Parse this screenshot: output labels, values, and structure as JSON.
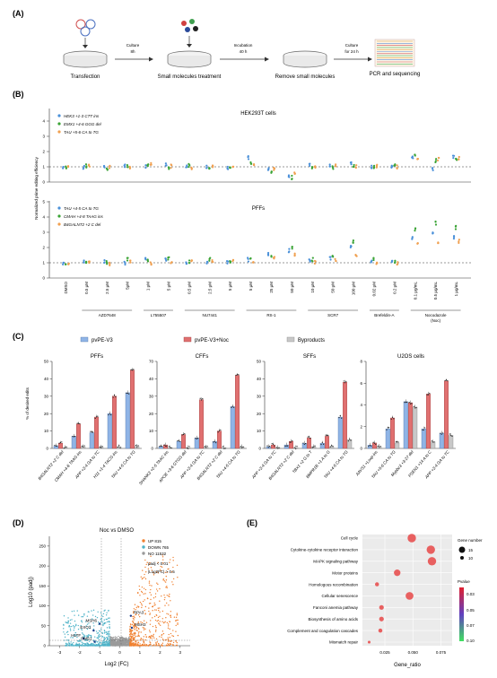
{
  "panels": {
    "A": {
      "label": "(A)",
      "steps": [
        {
          "name": "Transfection",
          "arrow_above": "Culture",
          "arrow_below": "8h"
        },
        {
          "name": "Small molecules treatment",
          "arrow_above": "Incubation",
          "arrow_below": "40 h"
        },
        {
          "name": "Remove small molecules",
          "arrow_above": "Culture",
          "arrow_below": "for 24 h"
        },
        {
          "name": "PCR and sequencing"
        }
      ]
    },
    "B": {
      "label": "(B)",
      "ylabel": "Normalized prime editing efficiency",
      "top": {
        "title": "HEK293T cells",
        "legend": [
          {
            "label": "HEK3 +1-3 CTT ins",
            "color": "#4a90d9"
          },
          {
            "label": "EMX1 +4-6 GGG del",
            "color": "#3aa335"
          },
          {
            "label": "TAU +5-6 CA to TG",
            "color": "#f0a050"
          }
        ],
        "yticks": [
          "0",
          "1",
          "2",
          "3",
          "4"
        ]
      },
      "bottom": {
        "title": "PFFs",
        "legend": [
          {
            "label": "TAU +4-5 CA to TG",
            "color": "#4a90d9"
          },
          {
            "label": "CMAH +4-8 TAAG ins",
            "color": "#3aa335"
          },
          {
            "label": "B4GALNT2 +2 C del",
            "color": "#f0a050"
          }
        ],
        "yticks": [
          "0",
          "1",
          "2",
          "3",
          "4",
          "5"
        ]
      },
      "conc_labels": [
        "DMSO",
        "0.5 μM",
        "2.5 μM",
        "5μM",
        "1 μM",
        "5 μM",
        "0.5 μM",
        "2.5 μM",
        "5 μM",
        "5 μM",
        "25 μM",
        "50 μM",
        "10 μM",
        "50 μM",
        "100 μM",
        "0.02 μM",
        "0.2 μM",
        "0.1 μg/mL",
        "0.5 μg/mL",
        "1 μg/mL"
      ],
      "groups": [
        "AZD7648",
        "L755507",
        "NU7441",
        "RS-1",
        "SCR7",
        "Brefeldin-A",
        "Nocodazole (Noc)"
      ]
    },
    "C": {
      "label": "(C)",
      "legend": [
        {
          "label": "pvPE-V3",
          "color": "#8fb4e6"
        },
        {
          "label": "pvPE-V3+Noc",
          "color": "#e07070"
        },
        {
          "label": "Byproducts",
          "color": "#c8c8c8"
        }
      ],
      "ylabel": "% of desired edits",
      "subpanels": [
        {
          "title": "PFFs",
          "yticks": [
            "0",
            "10",
            "20",
            "30",
            "40",
            "50"
          ],
          "sites": [
            "B4GALNT2 +2 C del",
            "CMAH +4-8 TAAG ins",
            "APP +3-4 GA to TC",
            "H11 +1-4 TACG ins",
            "TAU +4-5 CA to TG"
          ]
        },
        {
          "title": "CFFs",
          "yticks": [
            "0",
            "10",
            "20",
            "30",
            "40",
            "70"
          ],
          "sites": [
            "SHANK3 +2-5 TAAC ins",
            "APOE +3-6 GTGG del",
            "APP +3-4 GA to TC",
            "B4GALNT2 +2 C del",
            "TAU +4-5 CA to TG"
          ]
        },
        {
          "title": "SFFs",
          "yticks": [
            "0",
            "10",
            "20",
            "30",
            "40",
            "50"
          ],
          "sites": [
            "APP +3-4 GA to TC",
            "B4GALNT2 +2 C del",
            "TBX1 +2 G to T",
            "BMPR1B +1 A to G",
            "TAU +4-5 CA to TG"
          ]
        },
        {
          "title": "U2OS cells",
          "yticks": [
            "0",
            "2",
            "4",
            "6",
            "8"
          ],
          "sites": [
            "AAVS1 +Loxp ins",
            "TAU +5-6 CA to TG",
            "Mypbc3 +3-27 del",
            "PSEN1 +14 A to C",
            "APP +3-4 GA to TC"
          ]
        }
      ]
    },
    "D": {
      "label": "(D)",
      "title": "Noc vs DMSO",
      "xlabel": "Log2 (FC)",
      "ylabel": "Log10 (padj)",
      "stats": [
        {
          "text": "UP 815",
          "color": "#f08030"
        },
        {
          "text": "DOWN 765",
          "color": "#4fb3c8"
        },
        {
          "text": "NO 11532",
          "color": "#9a9a9a"
        }
      ],
      "criteria": [
        "padj < 0.01",
        "|Log2FC| > 0.5"
      ],
      "genes": [
        "MSH6",
        "RPA3",
        "MSH3",
        "EXO1",
        "HLTF",
        "PMS1"
      ],
      "xticks": [
        "-3",
        "-2",
        "-1",
        "0",
        "1",
        "2",
        "3"
      ],
      "yticks": [
        "0",
        "50",
        "100",
        "150",
        "200",
        "250"
      ]
    },
    "E": {
      "label": "(E)",
      "xlabel": "Gene_ratio",
      "xticks": [
        "0.025",
        "0.050",
        "0.075"
      ],
      "size_legend_title": "Gene number",
      "size_legend": [
        "15",
        "10"
      ],
      "color_legend_title": "Pvalue",
      "color_legend_ticks": [
        "0.03",
        "0.05",
        "0.07",
        "0.10"
      ]
    }
  },
  "chart_data": [
    {
      "type": "scatter",
      "title": "Noc vs DMSO",
      "xlabel": "Log2 (FC)",
      "ylabel": "Log10 (padj)",
      "xlim": [
        -3.5,
        3.5
      ],
      "ylim": [
        0,
        270
      ],
      "series": [
        {
          "name": "UP 815",
          "count": 815
        },
        {
          "name": "DOWN 765",
          "count": 765
        },
        {
          "name": "NO 11532",
          "count": 11532
        }
      ],
      "annotations": [
        {
          "label": "MSH6",
          "x": -1.0,
          "y": 55
        },
        {
          "label": "RPA3",
          "x": 0.55,
          "y": 75
        },
        {
          "label": "MSH3",
          "x": 0.6,
          "y": 45
        },
        {
          "label": "EXO1",
          "x": -1.3,
          "y": 38
        },
        {
          "label": "HLTF",
          "x": -1.8,
          "y": 18
        },
        {
          "label": "PMS1",
          "x": -1.25,
          "y": 10
        }
      ]
    },
    {
      "type": "scatter",
      "xlabel": "Gene_ratio",
      "xlim": [
        0.005,
        0.085
      ],
      "categories": [
        "Cell cycle",
        "Cytokine-cytokine receptor interaction",
        "MAPK signaling pathway",
        "Motor proteins",
        "Homologous recombination",
        "Cellular senescence",
        "Fanconi anemia pathway",
        "Biosynthesis of amino acids",
        "Complement and coagulation cascades",
        "Mismatch repair"
      ],
      "gene_ratio": [
        0.049,
        0.066,
        0.067,
        0.036,
        0.018,
        0.047,
        0.022,
        0.022,
        0.021,
        0.011
      ],
      "gene_number": [
        15,
        15,
        15,
        12,
        8,
        14,
        9,
        9,
        8,
        6
      ],
      "pvalue": [
        0.02,
        0.02,
        0.02,
        0.02,
        0.02,
        0.02,
        0.02,
        0.02,
        0.02,
        0.02
      ]
    }
  ]
}
